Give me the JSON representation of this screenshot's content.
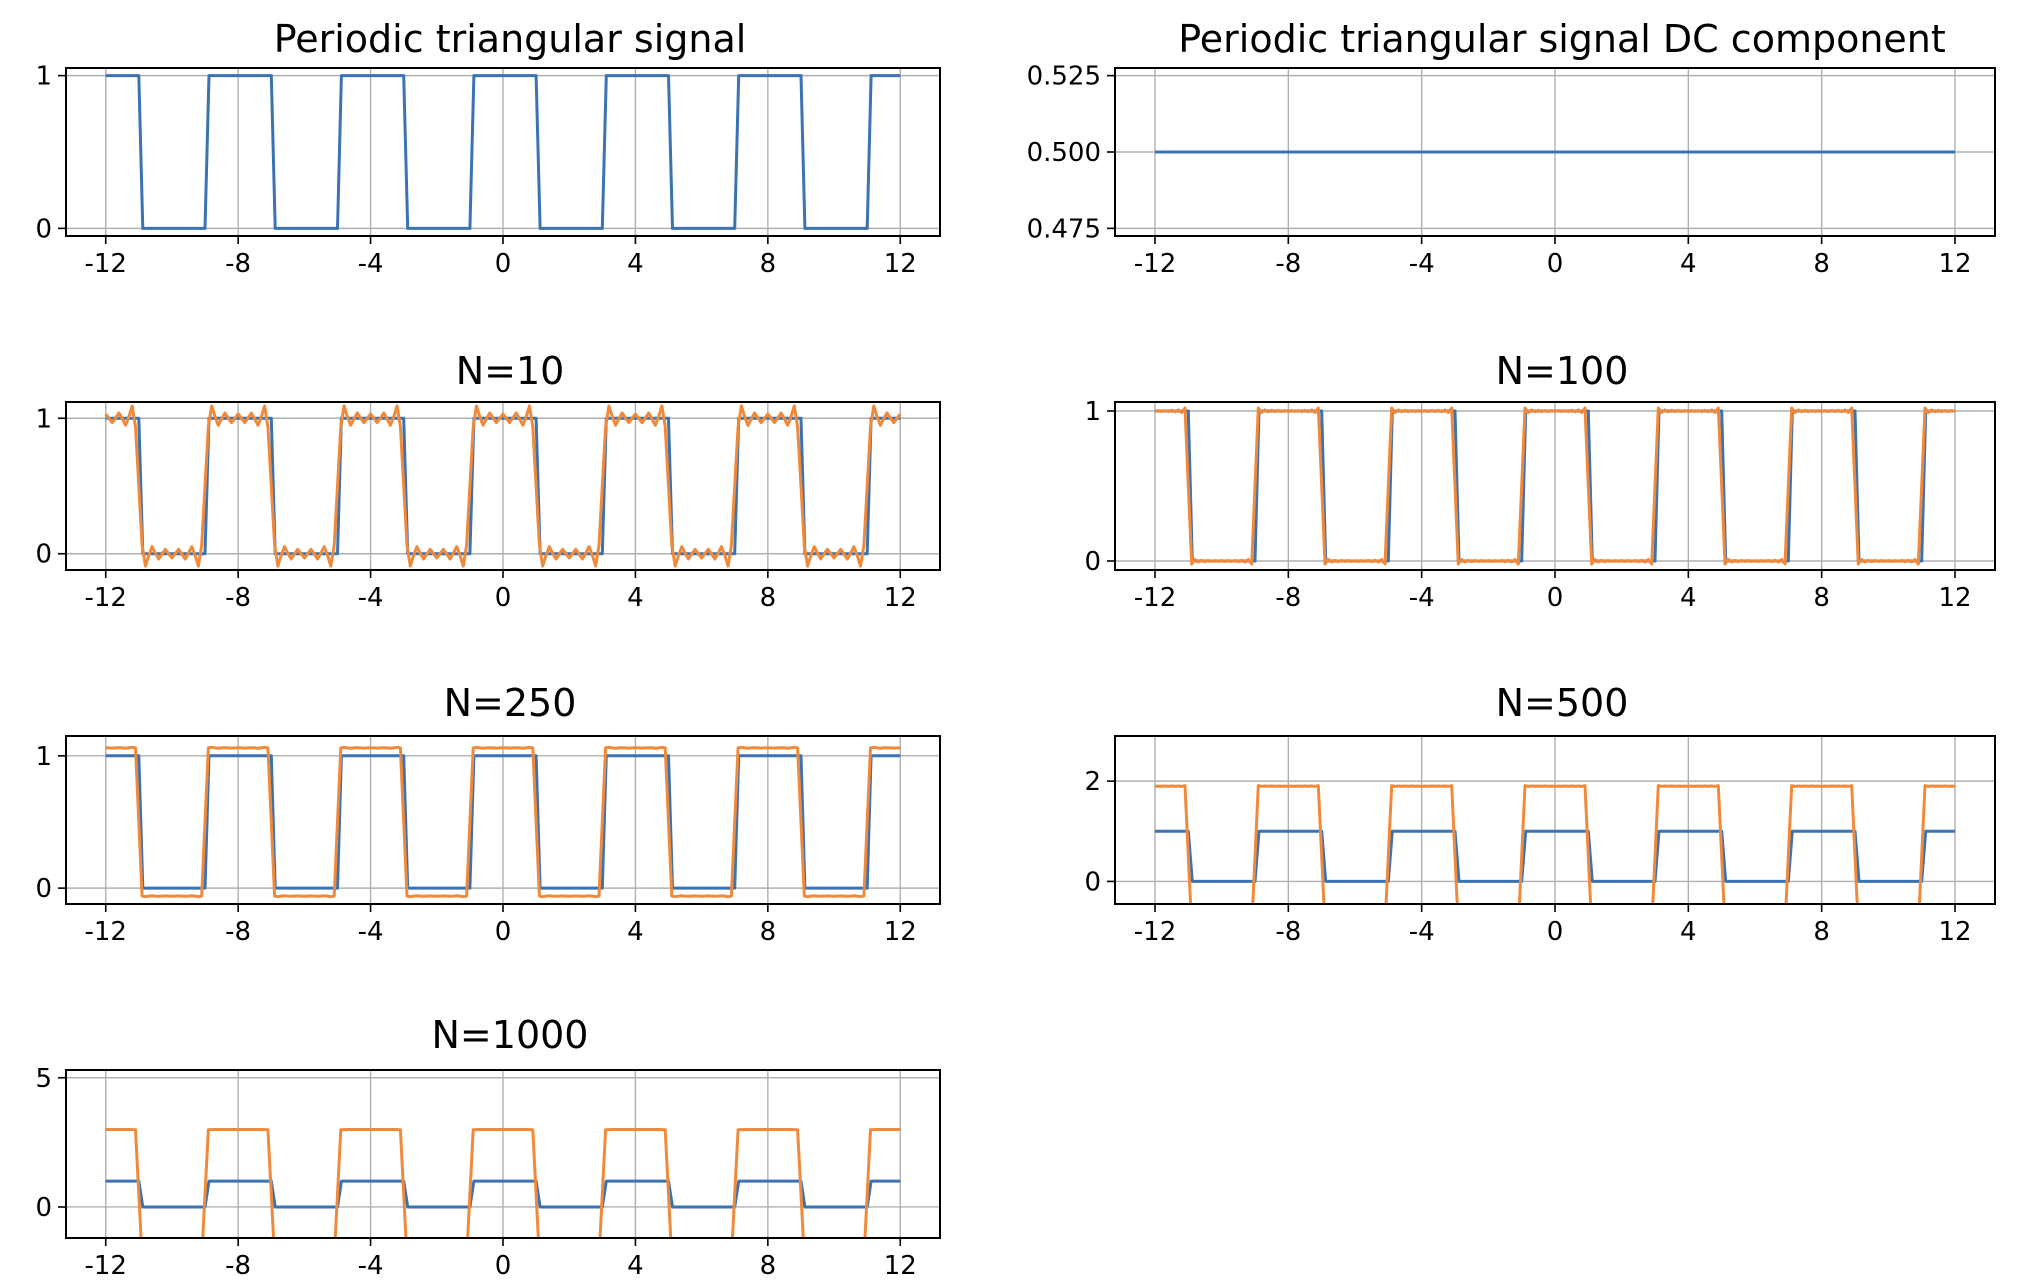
{
  "colors": {
    "signal": "#3a72b4",
    "approximation": "#f08a3a",
    "grid": "#b0b0b0",
    "axes": "#000000"
  },
  "chart_data": [
    {
      "type": "line",
      "title": "Periodic triangular signal",
      "xlabel": "",
      "ylabel": "",
      "xlim": [
        -13.2,
        13.2
      ],
      "ylim": [
        -0.05,
        1.05
      ],
      "xticks": [
        -12,
        -8,
        -4,
        0,
        4,
        8,
        12
      ],
      "xtick_labels": [
        "-12",
        "-8",
        "-4",
        "0",
        "4",
        "8",
        "12"
      ],
      "yticks": [
        0,
        1
      ],
      "ytick_labels": [
        "0",
        "1"
      ],
      "grid": true,
      "series": [
        {
          "kind": "square",
          "amplitude": 1,
          "period": 4,
          "high_half_width": 1,
          "color": "signal"
        }
      ]
    },
    {
      "type": "line",
      "title": "Periodic triangular signal DC component",
      "xlabel": "",
      "ylabel": "",
      "xlim": [
        -13.2,
        13.2
      ],
      "ylim": [
        0.4725,
        0.5275
      ],
      "xticks": [
        -12,
        -8,
        -4,
        0,
        4,
        8,
        12
      ],
      "xtick_labels": [
        "-12",
        "-8",
        "-4",
        "0",
        "4",
        "8",
        "12"
      ],
      "yticks": [
        0.475,
        0.5,
        0.525
      ],
      "ytick_labels": [
        "0.475",
        "0.500",
        "0.525"
      ],
      "grid": true,
      "series": [
        {
          "kind": "constant",
          "value": 0.5,
          "color": "signal"
        }
      ]
    },
    {
      "type": "line",
      "title": "N=10",
      "xlabel": "",
      "ylabel": "",
      "xlim": [
        -13.2,
        13.2
      ],
      "ylim": [
        -0.12,
        1.12
      ],
      "xticks": [
        -12,
        -8,
        -4,
        0,
        4,
        8,
        12
      ],
      "xtick_labels": [
        "-12",
        "-8",
        "-4",
        "0",
        "4",
        "8",
        "12"
      ],
      "yticks": [
        0,
        1
      ],
      "ytick_labels": [
        "0",
        "1"
      ],
      "grid": true,
      "series": [
        {
          "kind": "square",
          "amplitude": 1,
          "period": 4,
          "high_half_width": 1,
          "color": "signal"
        },
        {
          "kind": "fourier",
          "harmonics": 10,
          "gain": 1.0,
          "color": "approximation"
        }
      ]
    },
    {
      "type": "line",
      "title": "N=100",
      "xlabel": "",
      "ylabel": "",
      "xlim": [
        -13.2,
        13.2
      ],
      "ylim": [
        -0.06,
        1.06
      ],
      "xticks": [
        -12,
        -8,
        -4,
        0,
        4,
        8,
        12
      ],
      "xtick_labels": [
        "-12",
        "-8",
        "-4",
        "0",
        "4",
        "8",
        "12"
      ],
      "yticks": [
        0,
        1
      ],
      "ytick_labels": [
        "0",
        "1"
      ],
      "grid": true,
      "series": [
        {
          "kind": "square",
          "amplitude": 1,
          "period": 4,
          "high_half_width": 1,
          "color": "signal"
        },
        {
          "kind": "fourier",
          "harmonics": 100,
          "gain": 1.0,
          "color": "approximation"
        }
      ]
    },
    {
      "type": "line",
      "title": "N=250",
      "xlabel": "",
      "ylabel": "",
      "xlim": [
        -13.2,
        13.2
      ],
      "ylim": [
        -0.12,
        1.15
      ],
      "xticks": [
        -12,
        -8,
        -4,
        0,
        4,
        8,
        12
      ],
      "xtick_labels": [
        "-12",
        "-8",
        "-4",
        "0",
        "4",
        "8",
        "12"
      ],
      "yticks": [
        0,
        1
      ],
      "ytick_labels": [
        "0",
        "1"
      ],
      "grid": true,
      "series": [
        {
          "kind": "square",
          "amplitude": 1,
          "period": 4,
          "high_half_width": 1,
          "color": "signal"
        },
        {
          "kind": "fourier",
          "harmonics": 250,
          "gain": 1.12,
          "color": "approximation"
        }
      ]
    },
    {
      "type": "line",
      "title": "N=500",
      "xlabel": "",
      "ylabel": "",
      "xlim": [
        -13.2,
        13.2
      ],
      "ylim": [
        -0.45,
        2.9
      ],
      "xticks": [
        -12,
        -8,
        -4,
        0,
        4,
        8,
        12
      ],
      "xtick_labels": [
        "-12",
        "-8",
        "-4",
        "0",
        "4",
        "8",
        "12"
      ],
      "yticks": [
        0,
        2
      ],
      "ytick_labels": [
        "0",
        "2"
      ],
      "grid": true,
      "series": [
        {
          "kind": "square",
          "amplitude": 1,
          "period": 4,
          "high_half_width": 1,
          "color": "signal"
        },
        {
          "kind": "fourier",
          "harmonics": 500,
          "gain": 2.8,
          "color": "approximation"
        }
      ]
    },
    {
      "type": "line",
      "title": "N=1000",
      "xlabel": "",
      "ylabel": "",
      "xlim": [
        -13.2,
        13.2
      ],
      "ylim": [
        -1.2,
        5.3
      ],
      "xticks": [
        -12,
        -8,
        -4,
        0,
        4,
        8,
        12
      ],
      "xtick_labels": [
        "-12",
        "-8",
        "-4",
        "0",
        "4",
        "8",
        "12"
      ],
      "yticks": [
        0,
        5
      ],
      "ytick_labels": [
        "0",
        "5"
      ],
      "grid": true,
      "series": [
        {
          "kind": "square",
          "amplitude": 1,
          "period": 4,
          "high_half_width": 1,
          "color": "signal"
        },
        {
          "kind": "fourier",
          "harmonics": 1000,
          "gain": 5.0,
          "color": "approximation"
        }
      ]
    }
  ]
}
